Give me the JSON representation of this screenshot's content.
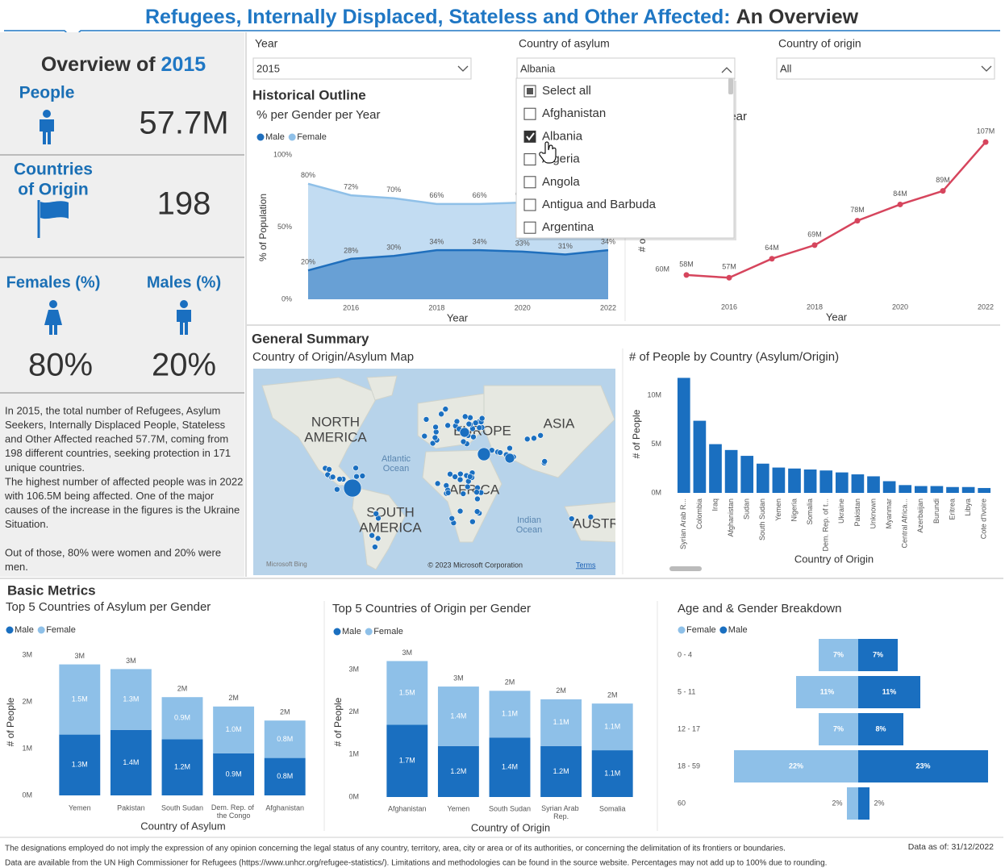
{
  "header": {
    "title_part1": "Refugees, Internally Displaced, Stateless and Other Affected:",
    "title_part2": "An Overview"
  },
  "overview": {
    "heading": "Overview of",
    "year": "2015",
    "people_label": "People",
    "people_value": "57.7M",
    "countries_label": [
      "Countries",
      "of Origin"
    ],
    "countries_value": "198",
    "females_label": "Females (%)",
    "males_label": "Males (%)",
    "females_value": "80%",
    "males_value": "20%"
  },
  "narrative": [
    [
      "In 2015, the total number of Refugees, Asylum",
      "Seekers, Internally Displaced People, Stateless",
      "and Other Affected reached 57.7M, coming from",
      "198 different countries, seeking protection in 171",
      "unique countries.",
      "The highest number of affected people was in 2022",
      "with 106.5M being affected. One of the major",
      "causes of the increase in the figures is the Ukraine",
      "Situation."
    ],
    [
      "Out of those, 80% were women and 20% were",
      "men."
    ]
  ],
  "filters": [
    {
      "label": "Year",
      "value": "2015"
    },
    {
      "label": "Country of asylum",
      "value": "Albania"
    },
    {
      "label": "Country of origin",
      "value": "All"
    }
  ],
  "dropdown": {
    "items": [
      "Select all",
      "Afghanistan",
      "Albania",
      "Algeria",
      "Angola",
      "Antigua and Barbuda",
      "Argentina"
    ]
  },
  "sections": {
    "historical": "Historical Outline",
    "general": "General Summary",
    "basic": "Basic Metrics"
  },
  "map": {
    "title": "Country of Origin/Asylum Map",
    "labels": [
      [
        "NORTH",
        "AMERICA"
      ],
      [
        "EUROPE"
      ],
      [
        "ASIA"
      ],
      [
        "AFRICA"
      ],
      [
        "SOUTH",
        "AMERICA"
      ],
      [
        "AUSTRALIA"
      ]
    ],
    "oceans": [
      [
        "Atlantic",
        "Ocean"
      ],
      [
        "Indian",
        "Ocean"
      ]
    ],
    "credit": "Microsoft Bing",
    "copyright": "© 2023 Microsoft Corporation",
    "terms": "Terms"
  },
  "footer": {
    "lines": [
      "The designations employed do not imply the expression of any opinion concerning the legal status of any country, territory, area, city or area or of its authorities, or concerning the delimitation of its frontiers or boundaries.",
      "Data are available from the UN High Commissioner for Refugees (https://www.unhcr.org/refugee-statistics/). Limitations and methodologies can be found in the source website. Percentages may not add up to 100% due to rounding."
    ],
    "data_as_of": "Data as of: 31/12/2022"
  },
  "chart_data": [
    {
      "type": "area",
      "title": "% per Gender per Year",
      "x_label": "Year",
      "y_label": "% of Population",
      "x": [
        2015,
        2016,
        2017,
        2018,
        2019,
        2020,
        2021,
        2022
      ],
      "xlim": [
        2015,
        2022
      ],
      "xticks": [
        2016,
        2018,
        2020,
        2022
      ],
      "ylim": [
        0,
        100
      ],
      "yticks": [
        {
          "value": 0,
          "label": "0%"
        },
        {
          "value": 50,
          "label": "50%"
        },
        {
          "value": 100,
          "label": "100%"
        }
      ],
      "series": [
        {
          "name": "Male",
          "color": "#1f6fbd",
          "values": [
            20,
            28,
            30,
            34,
            34,
            33,
            31,
            34
          ],
          "value_labels": [
            "20%",
            "28%",
            "30%",
            "34%",
            "34%",
            "33%",
            "31%",
            "34%"
          ]
        },
        {
          "name": "Female",
          "color": "#8fc0e8",
          "values": [
            80,
            72,
            70,
            66,
            66,
            67,
            69,
            66
          ],
          "value_labels": [
            "80%",
            "72%",
            "70%",
            "66%",
            "66%",
            "67%",
            "69%",
            "66%"
          ]
        }
      ]
    },
    {
      "type": "line",
      "title": "# of People per Year",
      "x_label": "Year",
      "y_label": "# of People",
      "x": [
        2015,
        2016,
        2017,
        2018,
        2019,
        2020,
        2021,
        2022
      ],
      "xlim": [
        2015,
        2022
      ],
      "xticks": [
        2016,
        2018,
        2020,
        2022
      ],
      "ylim": [
        55000000,
        110000000
      ],
      "yticks": [
        {
          "value": 60000000,
          "label": "60M"
        }
      ],
      "series": [
        {
          "name": "# of People",
          "color": "#d6455d",
          "values": [
            58000000,
            57000000,
            64000000,
            69000000,
            78000000,
            84000000,
            89000000,
            107000000
          ],
          "value_labels": [
            "58M",
            "57M",
            "64M",
            "69M",
            "78M",
            "84M",
            "89M",
            "107M"
          ]
        }
      ]
    },
    {
      "type": "bar",
      "title": "# of People by Country (Asylum/Origin)",
      "x_label": "Country of Origin",
      "y_label": "# of People",
      "color": "#1a6fc0",
      "categories": [
        "Syrian Arab R...",
        "Colombia",
        "Iraq",
        "Afghanistan",
        "Sudan",
        "South Sudan",
        "Yemen",
        "Nigeria",
        "Somalia",
        "Dem. Rep. of t...",
        "Ukraine",
        "Pakistan",
        "Unknown",
        "Myanmar",
        "Central Africa...",
        "Azerbaijan",
        "Burundi",
        "Eritrea",
        "Libya",
        "Cote d'Ivoire"
      ],
      "values": [
        11800000,
        7400000,
        5000000,
        4400000,
        3800000,
        3000000,
        2600000,
        2500000,
        2400000,
        2300000,
        2100000,
        1900000,
        1700000,
        1200000,
        800000,
        700000,
        700000,
        600000,
        600000,
        500000
      ],
      "ylim": [
        0,
        12000000
      ],
      "yticks": [
        {
          "value": 0,
          "label": "0M"
        },
        {
          "value": 5000000,
          "label": "5M"
        },
        {
          "value": 10000000,
          "label": "10M"
        }
      ]
    },
    {
      "type": "stacked_bar",
      "title": "Top 5 Countries of Asylum per Gender",
      "x_label": "Country of Asylum",
      "y_label": "# of People",
      "categories": [
        "Yemen",
        "Pakistan",
        "South Sudan",
        "Dem. Rep. of the Congo",
        "Afghanistan"
      ],
      "series": [
        {
          "name": "Male",
          "color": "#1a6fc0",
          "values": [
            1300000,
            1400000,
            1200000,
            900000,
            800000
          ],
          "value_labels": [
            "1.3M",
            "1.4M",
            "1.2M",
            "0.9M",
            "0.8M"
          ]
        },
        {
          "name": "Female",
          "color": "#8ec0e8",
          "values": [
            1500000,
            1300000,
            900000,
            1000000,
            800000
          ],
          "value_labels": [
            "1.5M",
            "1.3M",
            "0.9M",
            "1.0M",
            "0.8M"
          ]
        }
      ],
      "totals": [
        2800000,
        2700000,
        2100000,
        1900000,
        1600000
      ],
      "total_labels": [
        "3M",
        "3M",
        "2M",
        "2M",
        "2M"
      ],
      "ylim": [
        0,
        3000000
      ],
      "yticks": [
        {
          "value": 0,
          "label": "0M"
        },
        {
          "value": 1000000,
          "label": "1M"
        },
        {
          "value": 2000000,
          "label": "2M"
        },
        {
          "value": 3000000,
          "label": "3M"
        }
      ]
    },
    {
      "type": "stacked_bar",
      "title": "Top 5 Countries of Origin per Gender",
      "x_label": "Country of Origin",
      "y_label": "# of People",
      "categories": [
        "Afghanistan",
        "Yemen",
        "South Sudan",
        "Syrian Arab Rep.",
        "Somalia"
      ],
      "series": [
        {
          "name": "Male",
          "color": "#1a6fc0",
          "values": [
            1700000,
            1200000,
            1400000,
            1200000,
            1100000
          ],
          "value_labels": [
            "1.7M",
            "1.2M",
            "1.4M",
            "1.2M",
            "1.1M"
          ]
        },
        {
          "name": "Female",
          "color": "#8ec0e8",
          "values": [
            1500000,
            1400000,
            1100000,
            1100000,
            1100000
          ],
          "value_labels": [
            "1.5M",
            "1.4M",
            "1.1M",
            "1.1M",
            "1.1M"
          ]
        }
      ],
      "totals": [
        3200000,
        2600000,
        2500000,
        2300000,
        2200000
      ],
      "total_labels": [
        "3M",
        "3M",
        "2M",
        "2M",
        "2M"
      ],
      "ylim": [
        0,
        3000000
      ],
      "yticks": [
        {
          "value": 0,
          "label": "0M"
        },
        {
          "value": 1000000,
          "label": "1M"
        },
        {
          "value": 2000000,
          "label": "2M"
        },
        {
          "value": 3000000,
          "label": "3M"
        }
      ]
    },
    {
      "type": "butterfly",
      "title": "Age and & Gender Breakdown",
      "categories": [
        "0 - 4",
        "5 - 11",
        "12 - 17",
        "18 - 59",
        "60"
      ],
      "series": [
        {
          "name": "Female",
          "color": "#8ec0e8",
          "values": [
            7,
            11,
            7,
            22,
            2
          ],
          "value_labels": [
            "7%",
            "11%",
            "7%",
            "22%",
            "2%"
          ]
        },
        {
          "name": "Male",
          "color": "#1a6fc0",
          "values": [
            7,
            11,
            8,
            23,
            2
          ],
          "value_labels": [
            "7%",
            "11%",
            "8%",
            "23%",
            "2%"
          ]
        }
      ]
    }
  ]
}
